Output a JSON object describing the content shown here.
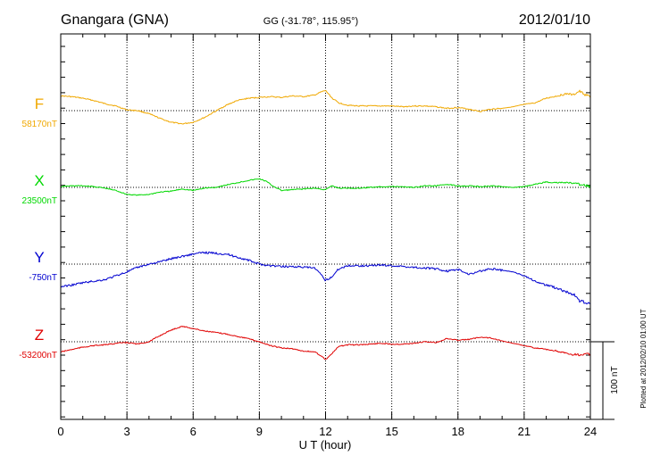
{
  "chart_data": {
    "type": "line",
    "title": "Gnangara (GNA)",
    "subtitle": "GG (-31.78°, 115.95°)",
    "date": "2012/01/10",
    "xlabel": "U T (hour)",
    "xlim": [
      0,
      24
    ],
    "xticks": [
      "0",
      "3",
      "6",
      "9",
      "12",
      "15",
      "18",
      "21",
      "24"
    ],
    "grid": true,
    "scale_label": "100 nT",
    "scale_nT": 100,
    "plotted_note": "Plotted at 2012/02/10 01:00 UT",
    "series": [
      {
        "name": "F",
        "baseline_label": "58170nT",
        "color": "#f0a800",
        "x": [
          0,
          0.5,
          1,
          1.5,
          2,
          2.5,
          3,
          3.5,
          4,
          4.5,
          5,
          5.5,
          6,
          6.5,
          7,
          7.5,
          8,
          8.5,
          9,
          9.5,
          10,
          10.5,
          11,
          11.5,
          11.8,
          12,
          12.3,
          12.6,
          13,
          13.5,
          14,
          14.5,
          15,
          15.5,
          16,
          16.5,
          17,
          17.5,
          18,
          18.5,
          19,
          19.5,
          20,
          20.5,
          21,
          21.5,
          22,
          22.5,
          23,
          23.2,
          23.5,
          23.8,
          24
        ],
        "values": [
          19,
          18,
          16,
          13,
          9,
          6,
          1,
          0,
          -4,
          -10,
          -15,
          -17,
          -15,
          -9,
          -1,
          7,
          13,
          16,
          17,
          18,
          17,
          19,
          18,
          20,
          24,
          26,
          16,
          10,
          7,
          6,
          6,
          6,
          6,
          5,
          6,
          6,
          5,
          3,
          4,
          2,
          -1,
          2,
          3,
          5,
          8,
          10,
          16,
          19,
          22,
          20,
          25,
          20,
          18
        ]
      },
      {
        "name": "X",
        "baseline_label": "23500nT",
        "color": "#00d800",
        "x": [
          0,
          0.5,
          1,
          1.5,
          2,
          2.5,
          3,
          3.5,
          4,
          4.5,
          5,
          5.5,
          6,
          6.5,
          7,
          7.5,
          8,
          8.5,
          9,
          9.3,
          9.6,
          10,
          10.5,
          11,
          11.5,
          12,
          12.3,
          12.6,
          13,
          13.5,
          14,
          14.5,
          15,
          15.5,
          16,
          16.5,
          17,
          17.5,
          18,
          18.5,
          19,
          19.5,
          20,
          20.5,
          21,
          21.5,
          22,
          22.5,
          23,
          23.5,
          24
        ],
        "values": [
          1,
          2,
          2,
          1,
          -1,
          -4,
          -9,
          -10,
          -9,
          -6,
          -5,
          -2,
          -4,
          -1,
          0,
          3,
          6,
          9,
          11,
          8,
          2,
          -4,
          -3,
          -2,
          -1,
          -3,
          2,
          -1,
          -1,
          -1,
          0,
          1,
          1,
          1,
          0,
          2,
          2,
          4,
          2,
          2,
          1,
          2,
          1,
          0,
          1,
          4,
          7,
          6,
          6,
          4,
          1
        ]
      },
      {
        "name": "Y",
        "baseline_label": "-750nT",
        "color": "#0000d0",
        "x": [
          0,
          0.5,
          1,
          1.5,
          2,
          2.5,
          3,
          3.5,
          4,
          4.5,
          5,
          5.5,
          6,
          6.5,
          7,
          7.5,
          8,
          8.5,
          9,
          9.5,
          10,
          10.5,
          11,
          11.5,
          11.8,
          12,
          12.3,
          12.6,
          13,
          13.5,
          14,
          14.5,
          15,
          15.5,
          16,
          16.5,
          17,
          17.5,
          18,
          18.5,
          19,
          19.5,
          20,
          20.5,
          21,
          21.5,
          22,
          22.5,
          23,
          23.3,
          23.6,
          24
        ],
        "values": [
          -29,
          -27,
          -24,
          -22,
          -20,
          -15,
          -10,
          -4,
          0,
          3,
          7,
          10,
          13,
          15,
          14,
          13,
          9,
          5,
          0,
          -2,
          -3,
          -3,
          -4,
          -5,
          -14,
          -21,
          -16,
          -6,
          -2,
          -2,
          -2,
          -1,
          -2,
          -3,
          -4,
          -5,
          -6,
          -9,
          -7,
          -13,
          -9,
          -6,
          -8,
          -10,
          -15,
          -22,
          -27,
          -31,
          -37,
          -41,
          -49,
          -52
        ]
      },
      {
        "name": "Z",
        "baseline_label": "-53200nT",
        "color": "#e00000",
        "x": [
          0,
          0.5,
          1,
          1.5,
          2,
          2.5,
          3,
          3.5,
          4,
          4.5,
          5,
          5.5,
          6,
          6.5,
          7,
          7.5,
          8,
          8.5,
          9,
          9.5,
          10,
          10.5,
          11,
          11.5,
          11.8,
          12,
          12.3,
          12.6,
          13,
          13.5,
          14,
          14.5,
          15,
          15.5,
          16,
          16.5,
          17,
          17.5,
          18,
          18.5,
          19,
          19.5,
          20,
          20.5,
          21,
          21.5,
          22,
          22.5,
          23,
          23.5,
          24
        ],
        "values": [
          -13,
          -10,
          -7,
          -5,
          -4,
          -2,
          -1,
          -3,
          0,
          8,
          15,
          20,
          17,
          14,
          12,
          10,
          7,
          4,
          0,
          -5,
          -8,
          -9,
          -12,
          -13,
          -18,
          -23,
          -15,
          -6,
          -4,
          -4,
          -3,
          -2,
          -3,
          -3,
          -2,
          0,
          -1,
          4,
          2,
          3,
          6,
          5,
          1,
          -2,
          -5,
          -8,
          -10,
          -12,
          -16,
          -17,
          -16
        ]
      }
    ]
  }
}
